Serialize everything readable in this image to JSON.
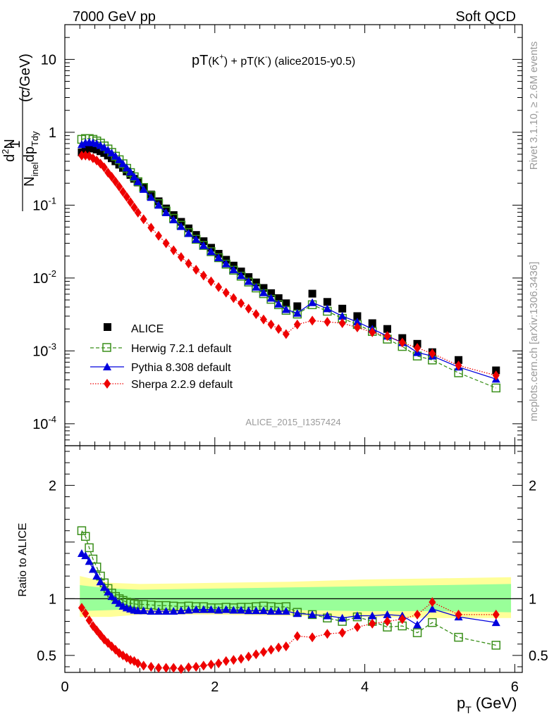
{
  "header": {
    "left": "7000 GeV pp",
    "right": "Soft QCD"
  },
  "title": {
    "main": "pT",
    "k_plus": "(K",
    "plus_sign": "+",
    "k_close1": ")",
    "plus_mid": " + pT",
    "k_minus": "(K",
    "minus_sign": "-",
    "k_close2": ")",
    "tag": " (alice2015-y0.5)"
  },
  "ylabel_top": {
    "one": "1",
    "d2n": "d",
    "d2n_sup": "2",
    "d2n_n": "N",
    "den_n": "N",
    "den_sub": "inel",
    "den_dp": "dp",
    "den_sub2": "Tdy",
    "unit": "(c/GeV)"
  },
  "ylabel_bottom": "Ratio to ALICE",
  "xlabel": {
    "p": "p",
    "sub": "T",
    "unit": "(GeV)"
  },
  "side_right_top": "Rivet 3.1.10, ≥ 2.6M events",
  "side_right_bottom": "mcplots.cern.ch [arXiv:1306.3436]",
  "watermark": "ALICE_2015_I1357424",
  "legend": [
    "ALICE",
    "Herwig 7.2.1 default",
    "Pythia 8.308 default",
    "Sherpa 2.2.9 default"
  ],
  "colors": {
    "alice": "#000000",
    "herwig": "#3a8f1a",
    "pythia": "#0000dd",
    "sherpa": "#ee0000",
    "band_yellow": "#ffff99",
    "band_green": "#99ff99"
  },
  "chart_data": {
    "type": "scatter",
    "x_axis": {
      "label": "pT (GeV)",
      "range": [
        0,
        6.1
      ],
      "ticks": [
        0,
        2,
        4,
        6
      ]
    },
    "top": {
      "y_scale": "log",
      "y_range": [
        5e-05,
        30
      ],
      "y_ticks": [
        "10",
        "1",
        "10^-1",
        "10^-2",
        "10^-3",
        "10^-4"
      ],
      "x": [
        0.225,
        0.275,
        0.325,
        0.375,
        0.425,
        0.475,
        0.525,
        0.575,
        0.625,
        0.675,
        0.725,
        0.775,
        0.825,
        0.875,
        0.925,
        0.975,
        1.05,
        1.15,
        1.25,
        1.35,
        1.45,
        1.55,
        1.65,
        1.75,
        1.85,
        1.95,
        2.05,
        2.15,
        2.25,
        2.35,
        2.45,
        2.55,
        2.65,
        2.75,
        2.85,
        2.95,
        3.1,
        3.3,
        3.5,
        3.7,
        3.9,
        4.1,
        4.3,
        4.5,
        4.7,
        4.9,
        5.25,
        5.75
      ],
      "series": [
        {
          "name": "ALICE",
          "values": [
            0.53,
            0.58,
            0.6,
            0.6,
            0.58,
            0.55,
            0.52,
            0.48,
            0.44,
            0.4,
            0.36,
            0.325,
            0.29,
            0.26,
            0.23,
            0.205,
            0.175,
            0.14,
            0.113,
            0.09,
            0.073,
            0.059,
            0.048,
            0.039,
            0.032,
            0.026,
            0.0215,
            0.0178,
            0.0148,
            0.0123,
            0.0103,
            0.0087,
            0.0073,
            0.0062,
            0.0053,
            0.0045,
            0.0041,
            0.0061,
            0.0047,
            0.0038,
            0.003,
            0.0024,
            0.002,
            0.0015,
            0.00125,
            0.00096,
            0.00075,
            0.00054
          ]
        },
        {
          "name": "Herwig 7.2.1 default",
          "values": [
            0.8,
            0.82,
            0.82,
            0.8,
            0.76,
            0.71,
            0.65,
            0.59,
            0.53,
            0.47,
            0.42,
            0.37,
            0.32,
            0.28,
            0.245,
            0.21,
            0.175,
            0.135,
            0.105,
            0.083,
            0.066,
            0.053,
            0.042,
            0.034,
            0.028,
            0.023,
            0.019,
            0.0155,
            0.0128,
            0.0106,
            0.0088,
            0.0073,
            0.0061,
            0.0051,
            0.0043,
            0.0036,
            0.0032,
            0.0043,
            0.0035,
            0.0028,
            0.0023,
            0.00185,
            0.00145,
            0.00115,
            0.00085,
            0.00075,
            0.0005,
            0.00031
          ]
        },
        {
          "name": "Pythia 8.308 default",
          "values": [
            0.68,
            0.72,
            0.73,
            0.72,
            0.7,
            0.66,
            0.62,
            0.57,
            0.52,
            0.47,
            0.42,
            0.37,
            0.325,
            0.285,
            0.245,
            0.21,
            0.165,
            0.128,
            0.1,
            0.079,
            0.063,
            0.051,
            0.041,
            0.034,
            0.028,
            0.023,
            0.019,
            0.0157,
            0.013,
            0.0108,
            0.009,
            0.0075,
            0.0063,
            0.0053,
            0.0044,
            0.0037,
            0.0033,
            0.0046,
            0.0038,
            0.003,
            0.0025,
            0.002,
            0.0016,
            0.0013,
            0.00095,
            0.00085,
            0.0006,
            0.00041
          ]
        },
        {
          "name": "Sherpa 2.2.9 default",
          "values": [
            0.48,
            0.48,
            0.47,
            0.44,
            0.41,
            0.37,
            0.33,
            0.28,
            0.245,
            0.21,
            0.18,
            0.152,
            0.13,
            0.11,
            0.093,
            0.079,
            0.064,
            0.049,
            0.038,
            0.03,
            0.024,
            0.0194,
            0.0158,
            0.013,
            0.0108,
            0.009,
            0.0075,
            0.0063,
            0.0053,
            0.0045,
            0.0038,
            0.0032,
            0.0027,
            0.0023,
            0.002,
            0.0017,
            0.0023,
            0.0026,
            0.0025,
            0.0024,
            0.0021,
            0.0018,
            0.0016,
            0.0013,
            0.0011,
            0.00092,
            0.00063,
            0.00046
          ]
        }
      ]
    },
    "bottom": {
      "y_scale": "linear",
      "y_range": [
        0.35,
        2.35
      ],
      "y_ticks": [
        0.5,
        1,
        2
      ],
      "band_outer": [
        [
          0.2,
          0.84,
          1.2
        ],
        [
          0.6,
          0.84,
          1.14
        ],
        [
          1.0,
          0.86,
          1.13
        ],
        [
          2.0,
          0.86,
          1.14
        ],
        [
          3.0,
          0.85,
          1.15
        ],
        [
          4.0,
          0.84,
          1.17
        ],
        [
          5.0,
          0.83,
          1.18
        ],
        [
          5.95,
          0.83,
          1.19
        ]
      ],
      "band_inner": [
        [
          0.2,
          0.89,
          1.12
        ],
        [
          0.6,
          0.9,
          1.09
        ],
        [
          1.0,
          0.91,
          1.08
        ],
        [
          2.0,
          0.91,
          1.09
        ],
        [
          3.0,
          0.9,
          1.1
        ],
        [
          4.0,
          0.89,
          1.11
        ],
        [
          5.0,
          0.89,
          1.12
        ],
        [
          5.95,
          0.88,
          1.13
        ]
      ],
      "x": [
        0.225,
        0.275,
        0.325,
        0.375,
        0.425,
        0.475,
        0.525,
        0.575,
        0.625,
        0.675,
        0.725,
        0.775,
        0.825,
        0.875,
        0.925,
        0.975,
        1.05,
        1.15,
        1.25,
        1.35,
        1.45,
        1.55,
        1.65,
        1.75,
        1.85,
        1.95,
        2.05,
        2.15,
        2.25,
        2.35,
        2.45,
        2.55,
        2.65,
        2.75,
        2.85,
        2.95,
        3.1,
        3.3,
        3.5,
        3.7,
        3.9,
        4.1,
        4.3,
        4.5,
        4.7,
        4.9,
        5.25,
        5.75
      ],
      "series": [
        {
          "name": "Herwig 7.2.1 default",
          "values": [
            1.6,
            1.55,
            1.45,
            1.35,
            1.28,
            1.2,
            1.14,
            1.09,
            1.05,
            1.02,
            1.0,
            0.985,
            0.97,
            0.96,
            0.955,
            0.95,
            0.95,
            0.945,
            0.94,
            0.94,
            0.935,
            0.93,
            0.935,
            0.93,
            0.93,
            0.92,
            0.92,
            0.925,
            0.92,
            0.925,
            0.925,
            0.93,
            0.935,
            0.93,
            0.925,
            0.93,
            0.88,
            0.86,
            0.83,
            0.8,
            0.84,
            0.8,
            0.75,
            0.76,
            0.7,
            0.79,
            0.66,
            0.59
          ]
        },
        {
          "name": "Pythia 8.308 default",
          "values": [
            1.4,
            1.38,
            1.33,
            1.26,
            1.2,
            1.15,
            1.1,
            1.06,
            1.02,
            0.985,
            0.96,
            0.935,
            0.92,
            0.91,
            0.9,
            0.895,
            0.895,
            0.89,
            0.89,
            0.89,
            0.89,
            0.895,
            0.9,
            0.905,
            0.905,
            0.905,
            0.9,
            0.905,
            0.9,
            0.9,
            0.895,
            0.895,
            0.895,
            0.89,
            0.89,
            0.89,
            0.87,
            0.86,
            0.85,
            0.83,
            0.85,
            0.85,
            0.86,
            0.85,
            0.77,
            0.91,
            0.84,
            0.79
          ]
        },
        {
          "name": "Sherpa 2.2.9 default",
          "values": [
            0.92,
            0.87,
            0.81,
            0.76,
            0.72,
            0.68,
            0.64,
            0.61,
            0.58,
            0.55,
            0.52,
            0.5,
            0.48,
            0.46,
            0.45,
            0.43,
            0.41,
            0.4,
            0.39,
            0.39,
            0.39,
            0.38,
            0.395,
            0.4,
            0.41,
            0.42,
            0.43,
            0.45,
            0.46,
            0.47,
            0.49,
            0.51,
            0.53,
            0.55,
            0.57,
            0.58,
            0.67,
            0.66,
            0.69,
            0.7,
            0.75,
            0.78,
            0.8,
            0.82,
            0.86,
            0.97,
            0.86,
            0.86
          ]
        }
      ]
    }
  }
}
